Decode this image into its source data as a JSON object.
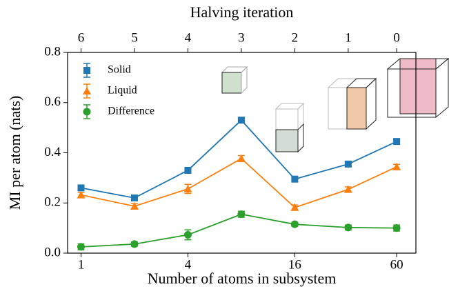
{
  "chart_data": {
    "type": "line",
    "xlabel": "Number of atoms in subsystem",
    "x2label": "Halving iteration",
    "ylabel": "MI per atom (nats)",
    "x": [
      1,
      2,
      4,
      8,
      16,
      32,
      60
    ],
    "xscale": "log",
    "xlim": [
      0.84,
      77
    ],
    "xticks": [
      1,
      4,
      16,
      60
    ],
    "x2ticks": [
      {
        "value": 1,
        "label": "6"
      },
      {
        "value": 2,
        "label": "5"
      },
      {
        "value": 4,
        "label": "4"
      },
      {
        "value": 8,
        "label": "3"
      },
      {
        "value": 16,
        "label": "2"
      },
      {
        "value": 32,
        "label": "1"
      },
      {
        "value": 60,
        "label": "0"
      }
    ],
    "ylim": [
      0,
      0.8
    ],
    "yticks": [
      {
        "value": 0,
        "label": "0.0"
      },
      0.2,
      0.4,
      0.6,
      0.8
    ],
    "legend": "upper-left",
    "series": [
      {
        "name": "Solid",
        "color": "#1f77b4",
        "marker": "square",
        "values": [
          0.26,
          0.22,
          0.33,
          0.53,
          0.295,
          0.355,
          0.445
        ],
        "errors": [
          0.01,
          0.008,
          0.01,
          0.01,
          0.01,
          0.01,
          0.01
        ]
      },
      {
        "name": "Liquid",
        "color": "#ff7f0e",
        "marker": "triangle",
        "values": [
          0.232,
          0.187,
          0.256,
          0.377,
          0.182,
          0.254,
          0.344
        ],
        "errors": [
          0.01,
          0.01,
          0.018,
          0.012,
          0.01,
          0.01,
          0.01
        ]
      },
      {
        "name": "Difference",
        "color": "#2ca02c",
        "marker": "circle",
        "values": [
          0.025,
          0.036,
          0.073,
          0.155,
          0.115,
          0.102,
          0.1
        ],
        "errors": [
          0.012,
          0.008,
          0.02,
          0.012,
          0.008,
          0.01,
          0.012
        ]
      }
    ]
  }
}
